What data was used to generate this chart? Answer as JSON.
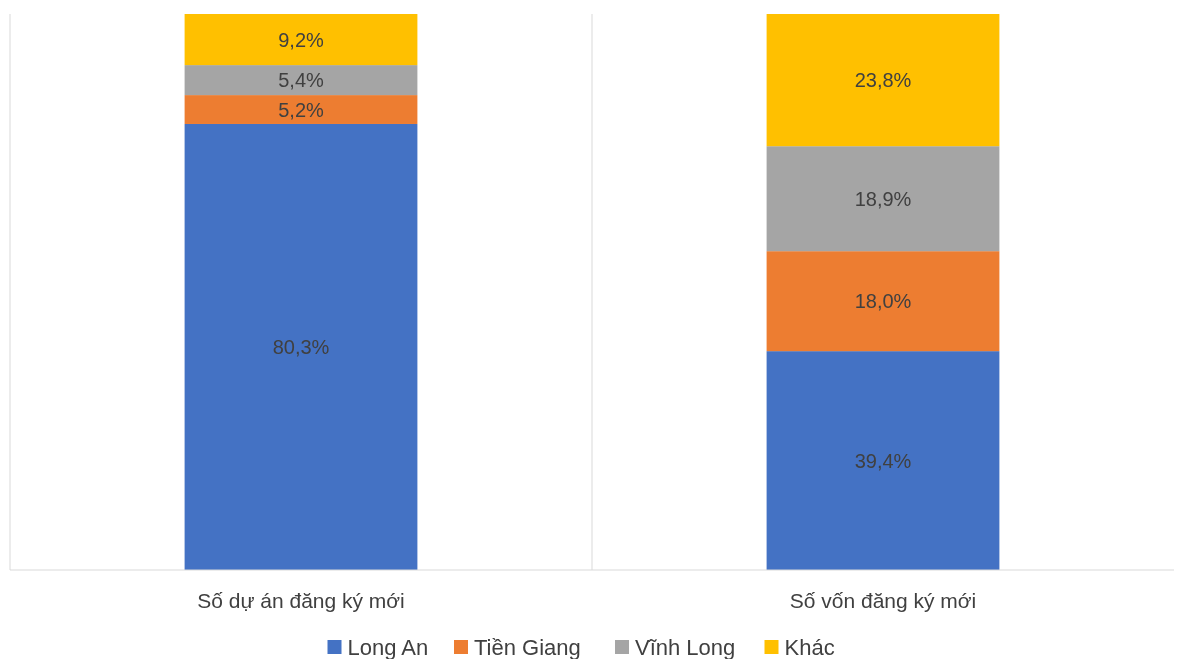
{
  "chart_data": {
    "type": "bar",
    "stacked": true,
    "categories": [
      "Số dự án đăng ký mới",
      "Số vốn đăng ký mới"
    ],
    "series": [
      {
        "name": "Long An",
        "color": "#4472c4",
        "values": [
          80.3,
          39.4
        ],
        "value_labels": [
          "80,3%",
          "39,4%"
        ]
      },
      {
        "name": "Tiền Giang",
        "color": "#ed7d31",
        "values": [
          5.2,
          18.0
        ],
        "value_labels": [
          "5,2%",
          "18,0%"
        ]
      },
      {
        "name": "Vĩnh Long",
        "color": "#a5a5a5",
        "values": [
          5.4,
          18.9
        ],
        "value_labels": [
          "5,4%",
          "18,9%"
        ]
      },
      {
        "name": "Khác",
        "color": "#ffc000",
        "values": [
          9.2,
          23.8
        ],
        "value_labels": [
          "9,2%",
          "23,8%"
        ]
      }
    ],
    "legend": "bottom"
  }
}
